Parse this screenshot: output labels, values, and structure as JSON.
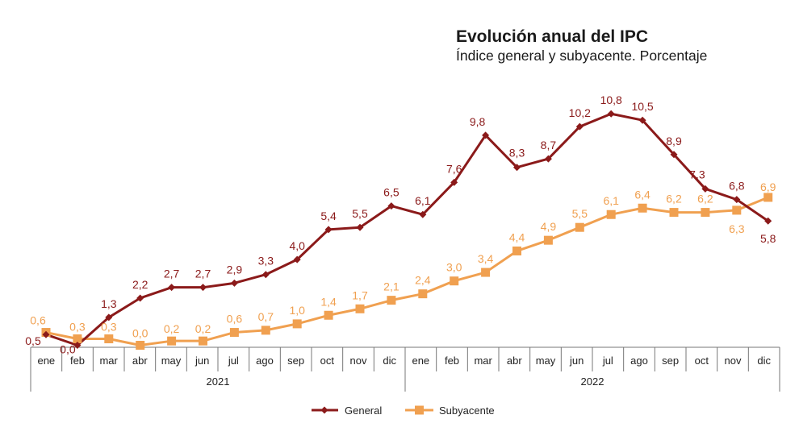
{
  "chart_data": {
    "type": "line",
    "title": "Evolución anual del IPC",
    "subtitle": "Índice general y subyacente. Porcentaje",
    "categories": [
      "ene",
      "feb",
      "mar",
      "abr",
      "may",
      "jun",
      "jul",
      "ago",
      "sep",
      "oct",
      "nov",
      "dic",
      "ene",
      "feb",
      "mar",
      "abr",
      "may",
      "jun",
      "jul",
      "ago",
      "sep",
      "oct",
      "nov",
      "dic"
    ],
    "years": [
      {
        "label": "2021",
        "start": 0,
        "end": 11
      },
      {
        "label": "2022",
        "start": 12,
        "end": 23
      }
    ],
    "series": [
      {
        "name": "General",
        "color": "#8b1a1a",
        "marker": "diamond",
        "values": [
          0.5,
          0.0,
          1.3,
          2.2,
          2.7,
          2.7,
          2.9,
          3.3,
          4.0,
          5.4,
          5.5,
          6.5,
          6.1,
          7.6,
          9.8,
          8.3,
          8.7,
          10.2,
          10.8,
          10.5,
          8.9,
          7.3,
          6.8,
          5.8
        ],
        "labels": [
          "0,5",
          "0,0",
          "1,3",
          "2,2",
          "2,7",
          "2,7",
          "2,9",
          "3,3",
          "4,0",
          "5,4",
          "5,5",
          "6,5",
          "6,1",
          "7,6",
          "9,8",
          "8,3",
          "8,7",
          "10,2",
          "10,8",
          "10,5",
          "8,9",
          "7,3",
          "6,8",
          "5,8"
        ]
      },
      {
        "name": "Subyacente",
        "color": "#f0a050",
        "marker": "square",
        "values": [
          0.6,
          0.3,
          0.3,
          0.0,
          0.2,
          0.2,
          0.6,
          0.7,
          1.0,
          1.4,
          1.7,
          2.1,
          2.4,
          3.0,
          3.4,
          4.4,
          4.9,
          5.5,
          6.1,
          6.4,
          6.2,
          6.2,
          6.3,
          6.9
        ],
        "labels": [
          "0,6",
          "0,3",
          "0,3",
          "0,0",
          "0,2",
          "0,2",
          "0,6",
          "0,7",
          "1,0",
          "1,4",
          "1,7",
          "2,1",
          "2,4",
          "3,0",
          "3,4",
          "4,4",
          "4,9",
          "5,5",
          "6,1",
          "6,4",
          "6,2",
          "6,2",
          "6,3",
          "6,9"
        ]
      }
    ],
    "ylim": [
      0,
      11
    ],
    "grid": false,
    "legend_position": "bottom-center"
  }
}
